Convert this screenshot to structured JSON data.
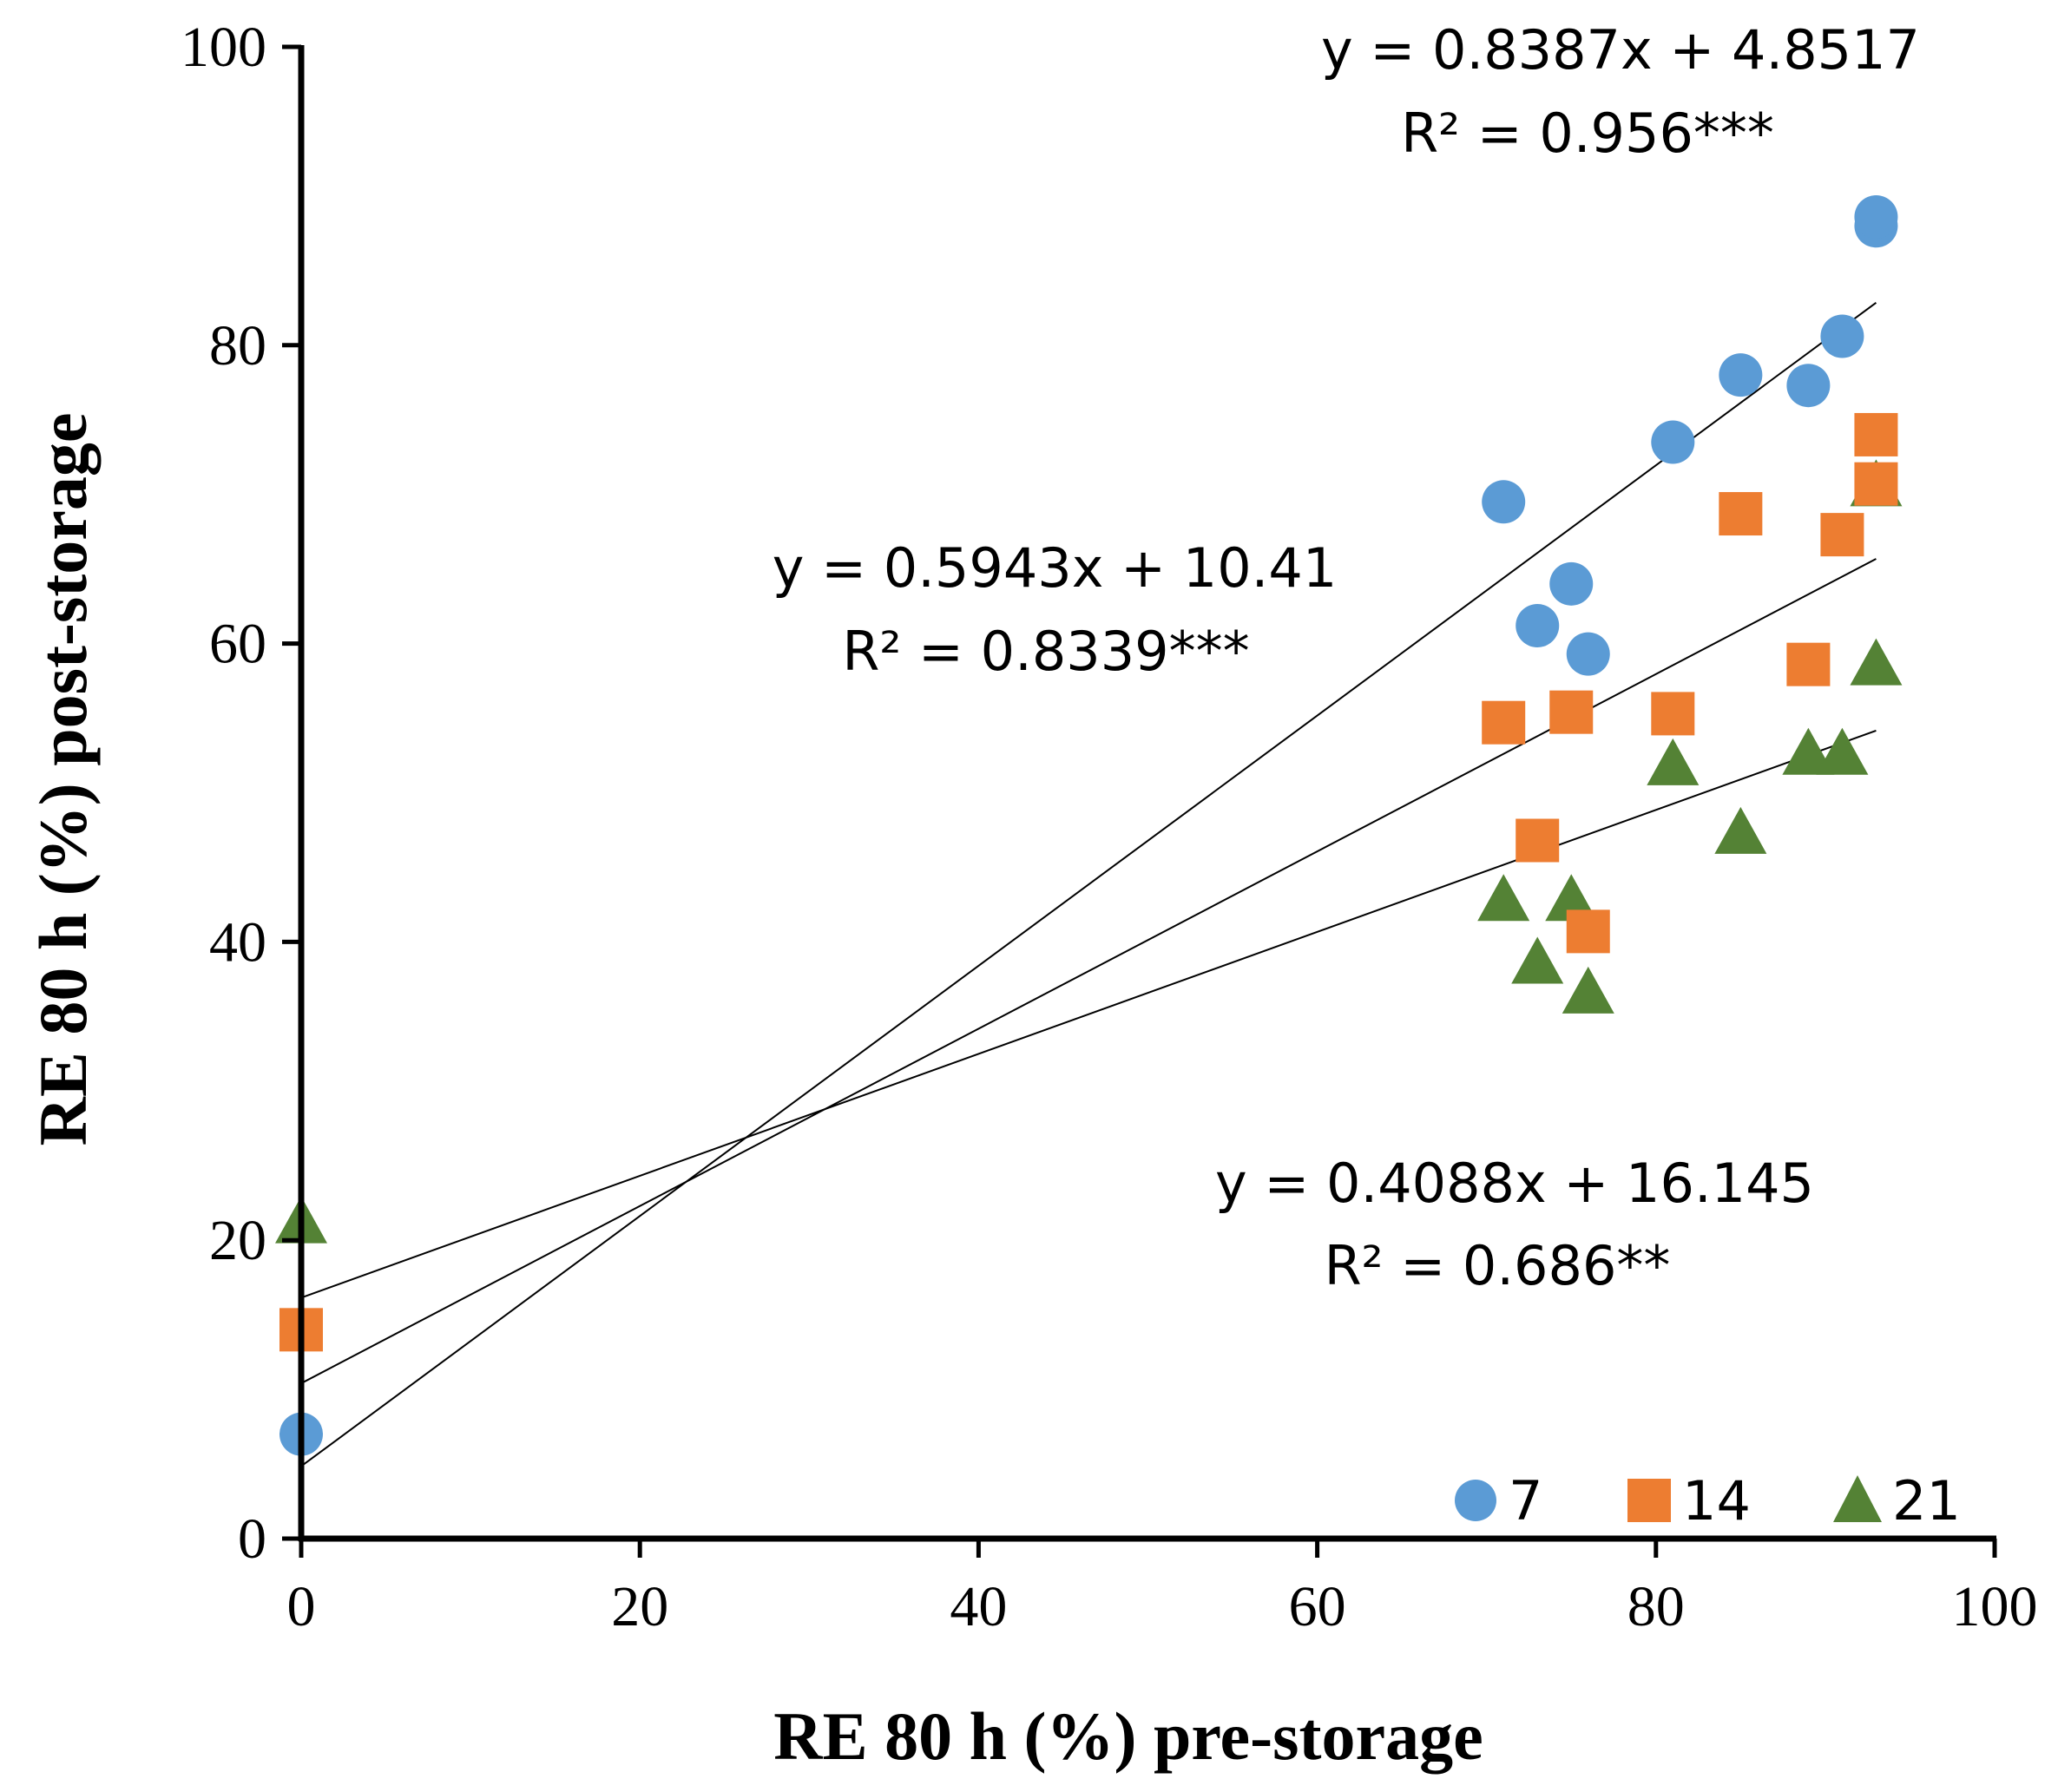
{
  "chart_data": {
    "type": "scatter",
    "title": "",
    "xlabel": "RE 80 h (%) pre-storage",
    "ylabel": "RE 80 h (%) post-storage",
    "xlim": [
      0,
      100
    ],
    "ylim": [
      0,
      100
    ],
    "xticks": [
      "0",
      "20",
      "40",
      "60",
      "80",
      "100"
    ],
    "yticks": [
      "0",
      "20",
      "40",
      "60",
      "80",
      "100"
    ],
    "grid": false,
    "legend_position": "bottom-right",
    "series": [
      {
        "name": "7",
        "marker": "circle",
        "color": "#5b9bd5",
        "points": [
          [
            0,
            7
          ],
          [
            71,
            69.5
          ],
          [
            73,
            61.2
          ],
          [
            75,
            64
          ],
          [
            76,
            59.3
          ],
          [
            81,
            73.5
          ],
          [
            85,
            78
          ],
          [
            89,
            77.3
          ],
          [
            91,
            80.6
          ],
          [
            93,
            88
          ],
          [
            93,
            88.6
          ]
        ],
        "fit": {
          "slope": 0.8387,
          "intercept": 4.8517,
          "x_range": [
            0,
            93
          ],
          "equation": "y = 0.8387x + 4.8517",
          "r2": "R² = 0.956***"
        }
      },
      {
        "name": "14",
        "marker": "square",
        "color": "#ed7d31",
        "points": [
          [
            0,
            14
          ],
          [
            71,
            54.7
          ],
          [
            73,
            46.8
          ],
          [
            75,
            55.4
          ],
          [
            76,
            40.7
          ],
          [
            81,
            55.3
          ],
          [
            85,
            68.7
          ],
          [
            89,
            58.6
          ],
          [
            91,
            67.3
          ],
          [
            93,
            74
          ],
          [
            93,
            70.7
          ]
        ],
        "fit": {
          "slope": 0.5943,
          "intercept": 10.41,
          "x_range": [
            0,
            93
          ],
          "equation": "y = 0.5943x + 10.41",
          "r2": "R² = 0.8339***"
        }
      },
      {
        "name": "21",
        "marker": "triangle",
        "color": "#548235",
        "points": [
          [
            0,
            21.2
          ],
          [
            71,
            42.8
          ],
          [
            73,
            38.6
          ],
          [
            75,
            42.8
          ],
          [
            76,
            36.6
          ],
          [
            81,
            51.9
          ],
          [
            85,
            47.3
          ],
          [
            89,
            52.6
          ],
          [
            91,
            52.6
          ],
          [
            93,
            58.6
          ],
          [
            93,
            70.6
          ]
        ],
        "fit": {
          "slope": 0.4088,
          "intercept": 16.145,
          "x_range": [
            0,
            93
          ],
          "equation": "y = 0.4088x + 16.145",
          "r2": "R² = 0.686**"
        }
      }
    ]
  }
}
